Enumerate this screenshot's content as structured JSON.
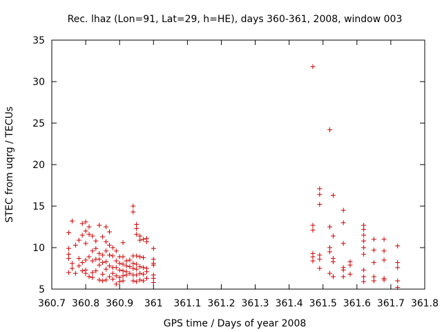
{
  "chart_data": {
    "type": "scatter",
    "title": "Rec. lhaz (Lon=91, Lat=29, h=HE), days 360-361, 2008, window 003",
    "xlabel": "GPS time / Days of year 2008",
    "ylabel": "STEC from uqrg / TECUs",
    "xlim": [
      360.7,
      361.8
    ],
    "ylim": [
      5,
      35
    ],
    "grid": false,
    "legend": "none",
    "marker": "plus",
    "color": "#cc0000",
    "x_ticks": [
      "360.7",
      "360.8",
      "360.9",
      "361",
      "361.1",
      "361.2",
      "361.3",
      "361.4",
      "361.5",
      "361.6",
      "361.7",
      "361.8"
    ],
    "y_ticks": [
      "5",
      "10",
      "15",
      "20",
      "25",
      "30",
      "35"
    ],
    "points": [
      [
        360.75,
        9.9
      ],
      [
        360.75,
        9.2
      ],
      [
        360.75,
        8.7
      ],
      [
        360.75,
        7.0
      ],
      [
        360.75,
        11.8
      ],
      [
        360.76,
        13.2
      ],
      [
        360.76,
        8.1
      ],
      [
        360.76,
        7.5
      ],
      [
        360.77,
        10.3
      ],
      [
        360.77,
        6.9
      ],
      [
        360.78,
        10.9
      ],
      [
        360.78,
        8.7
      ],
      [
        360.78,
        7.8
      ],
      [
        360.79,
        12.9
      ],
      [
        360.79,
        11.5
      ],
      [
        360.79,
        8.2
      ],
      [
        360.79,
        7.2
      ],
      [
        360.8,
        13.1
      ],
      [
        360.8,
        12.0
      ],
      [
        360.8,
        10.5
      ],
      [
        360.8,
        8.5
      ],
      [
        360.8,
        7.3
      ],
      [
        360.8,
        6.9
      ],
      [
        360.81,
        12.5
      ],
      [
        360.81,
        11.6
      ],
      [
        360.81,
        8.9
      ],
      [
        360.81,
        6.5
      ],
      [
        360.82,
        11.4
      ],
      [
        360.82,
        9.6
      ],
      [
        360.82,
        8.4
      ],
      [
        360.82,
        7.0
      ],
      [
        360.82,
        6.4
      ],
      [
        360.83,
        10.8
      ],
      [
        360.83,
        9.9
      ],
      [
        360.83,
        8.6
      ],
      [
        360.83,
        7.2
      ],
      [
        360.84,
        12.7
      ],
      [
        360.84,
        9.3
      ],
      [
        360.84,
        8.6
      ],
      [
        360.84,
        7.9
      ],
      [
        360.84,
        6.1
      ],
      [
        360.85,
        11.3
      ],
      [
        360.85,
        9.1
      ],
      [
        360.85,
        8.2
      ],
      [
        360.85,
        6.8
      ],
      [
        360.85,
        6.0
      ],
      [
        360.86,
        12.5
      ],
      [
        360.86,
        10.7
      ],
      [
        360.86,
        9.6
      ],
      [
        360.86,
        8.3
      ],
      [
        360.86,
        7.4
      ],
      [
        360.86,
        6.1
      ],
      [
        360.87,
        11.9
      ],
      [
        360.87,
        10.3
      ],
      [
        360.87,
        9.1
      ],
      [
        360.87,
        7.8
      ],
      [
        360.87,
        6.5
      ],
      [
        360.88,
        10.0
      ],
      [
        360.88,
        9.0
      ],
      [
        360.88,
        7.6
      ],
      [
        360.88,
        6.9
      ],
      [
        360.88,
        6.2
      ],
      [
        360.89,
        9.6
      ],
      [
        360.89,
        8.4
      ],
      [
        360.89,
        7.6
      ],
      [
        360.89,
        6.6
      ],
      [
        360.89,
        5.6
      ],
      [
        360.9,
        8.9
      ],
      [
        360.9,
        8.1
      ],
      [
        360.9,
        7.3
      ],
      [
        360.9,
        6.4
      ],
      [
        360.9,
        5.9
      ],
      [
        360.91,
        10.6
      ],
      [
        360.91,
        8.9
      ],
      [
        360.91,
        8.0
      ],
      [
        360.91,
        7.2
      ],
      [
        360.91,
        6.6
      ],
      [
        360.91,
        6.0
      ],
      [
        360.92,
        8.4
      ],
      [
        360.92,
        7.8
      ],
      [
        360.92,
        7.1
      ],
      [
        360.92,
        6.7
      ],
      [
        360.93,
        8.5
      ],
      [
        360.93,
        7.7
      ],
      [
        360.93,
        6.9
      ],
      [
        360.94,
        15.0
      ],
      [
        360.94,
        14.3
      ],
      [
        360.94,
        9.0
      ],
      [
        360.94,
        8.1
      ],
      [
        360.94,
        7.5
      ],
      [
        360.94,
        6.7
      ],
      [
        360.94,
        6.0
      ],
      [
        360.95,
        12.8
      ],
      [
        360.95,
        12.3
      ],
      [
        360.95,
        11.6
      ],
      [
        360.95,
        9.0
      ],
      [
        360.95,
        8.0
      ],
      [
        360.95,
        7.4
      ],
      [
        360.95,
        6.7
      ],
      [
        360.95,
        5.9
      ],
      [
        360.96,
        11.4
      ],
      [
        360.96,
        10.9
      ],
      [
        360.96,
        8.9
      ],
      [
        360.96,
        7.7
      ],
      [
        360.96,
        6.9
      ],
      [
        360.96,
        6.1
      ],
      [
        360.97,
        11.0
      ],
      [
        360.97,
        8.8
      ],
      [
        360.97,
        7.6
      ],
      [
        360.97,
        6.8
      ],
      [
        360.97,
        6.0
      ],
      [
        360.98,
        11.1
      ],
      [
        360.98,
        10.7
      ],
      [
        360.98,
        7.5
      ],
      [
        360.98,
        7.1
      ],
      [
        360.98,
        6.3
      ],
      [
        361.0,
        9.9
      ],
      [
        361.0,
        8.6
      ],
      [
        361.0,
        8.1
      ],
      [
        361.0,
        7.9
      ],
      [
        361.0,
        6.7
      ],
      [
        361.0,
        6.3
      ],
      [
        361.0,
        5.8
      ],
      [
        361.47,
        31.8
      ],
      [
        361.47,
        12.7
      ],
      [
        361.47,
        12.1
      ],
      [
        361.47,
        9.3
      ],
      [
        361.47,
        8.9
      ],
      [
        361.47,
        8.4
      ],
      [
        361.49,
        17.1
      ],
      [
        361.49,
        16.4
      ],
      [
        361.49,
        15.2
      ],
      [
        361.49,
        9.1
      ],
      [
        361.49,
        8.6
      ],
      [
        361.49,
        7.5
      ],
      [
        361.52,
        24.2
      ],
      [
        361.52,
        12.5
      ],
      [
        361.52,
        10.0
      ],
      [
        361.52,
        9.5
      ],
      [
        361.52,
        6.9
      ],
      [
        361.53,
        16.3
      ],
      [
        361.53,
        11.4
      ],
      [
        361.53,
        8.7
      ],
      [
        361.53,
        8.3
      ],
      [
        361.53,
        6.5
      ],
      [
        361.56,
        14.5
      ],
      [
        361.56,
        13.0
      ],
      [
        361.56,
        10.5
      ],
      [
        361.56,
        7.6
      ],
      [
        361.56,
        7.3
      ],
      [
        361.56,
        6.5
      ],
      [
        361.58,
        8.3
      ],
      [
        361.58,
        7.9
      ],
      [
        361.58,
        6.8
      ],
      [
        361.62,
        12.7
      ],
      [
        361.62,
        12.2
      ],
      [
        361.62,
        11.5
      ],
      [
        361.62,
        10.8
      ],
      [
        361.62,
        10.0
      ],
      [
        361.62,
        9.2
      ],
      [
        361.62,
        7.3
      ],
      [
        361.62,
        6.5
      ],
      [
        361.62,
        5.9
      ],
      [
        361.65,
        11.0
      ],
      [
        361.65,
        9.7
      ],
      [
        361.65,
        8.2
      ],
      [
        361.65,
        6.5
      ],
      [
        361.65,
        6.0
      ],
      [
        361.68,
        11.0
      ],
      [
        361.68,
        9.6
      ],
      [
        361.68,
        8.5
      ],
      [
        361.68,
        6.3
      ],
      [
        361.68,
        6.1
      ],
      [
        361.72,
        10.2
      ],
      [
        361.72,
        8.2
      ],
      [
        361.72,
        7.6
      ],
      [
        361.72,
        6.0
      ],
      [
        361.72,
        5.2
      ]
    ]
  }
}
